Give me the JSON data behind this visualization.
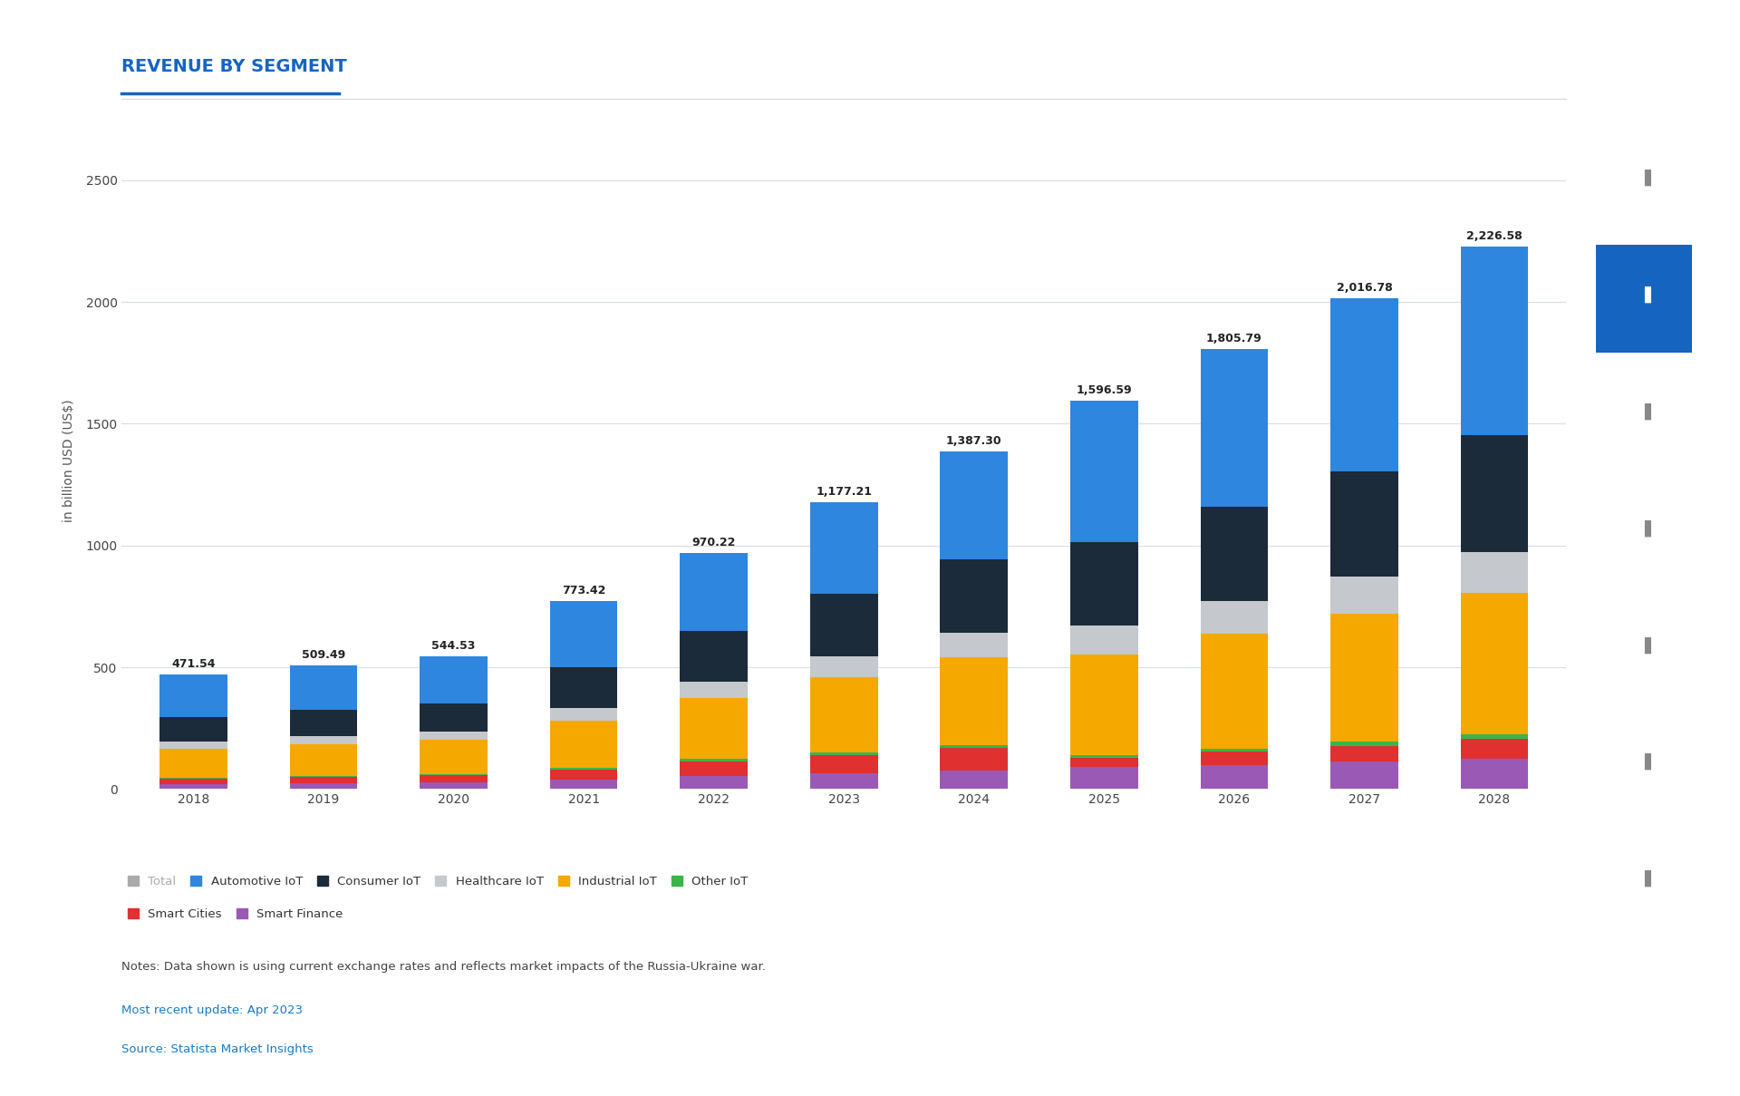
{
  "title": "REVENUE BY SEGMENT",
  "ylabel": "in billion USD (US$)",
  "years": [
    2018,
    2019,
    2020,
    2021,
    2022,
    2023,
    2024,
    2025,
    2026,
    2027,
    2028
  ],
  "totals": [
    471.54,
    509.49,
    544.53,
    773.42,
    970.22,
    1177.21,
    1387.3,
    1596.59,
    1805.79,
    2016.78,
    2226.58
  ],
  "segments": {
    "Smart Finance": {
      "color": "#9b59b6",
      "values": [
        22,
        25,
        28,
        40,
        55,
        65,
        78,
        90,
        100,
        112,
        125
      ]
    },
    "Smart Cities": {
      "color": "#e03030",
      "values": [
        20,
        25,
        28,
        40,
        60,
        75,
        90,
        38,
        55,
        65,
        80
      ]
    },
    "Other IoT": {
      "color": "#3ab54a",
      "values": [
        4,
        5,
        5,
        7,
        8,
        10,
        12,
        10,
        12,
        18,
        20
      ]
    },
    "Industrial IoT": {
      "color": "#f5a800",
      "values": [
        120,
        130,
        140,
        195,
        250,
        310,
        362,
        415,
        470,
        525,
        580
      ]
    },
    "Healthcare IoT": {
      "color": "#c5c8cc",
      "values": [
        30,
        33,
        36,
        52,
        68,
        85,
        100,
        118,
        135,
        152,
        170
      ]
    },
    "Consumer IoT": {
      "color": "#1c2b3a",
      "values": [
        100,
        108,
        115,
        165,
        210,
        258,
        300,
        343,
        388,
        433,
        478
      ]
    },
    "Automotive IoT": {
      "color": "#2e86de",
      "values": [
        175.54,
        183.49,
        192.53,
        274.42,
        319.22,
        374.21,
        445.3,
        582.59,
        645.79,
        711.78,
        773.58
      ]
    }
  },
  "ylim": [
    0,
    2700
  ],
  "yticks": [
    0,
    500,
    1000,
    1500,
    2000,
    2500
  ],
  "background_color": "#ffffff",
  "grid_color": "#d8dde6",
  "title_color": "#1565c0",
  "title_fontsize": 14,
  "axis_label_fontsize": 10,
  "tick_fontsize": 10,
  "total_fontsize": 9,
  "note1": "Notes: Data shown is using current exchange rates and reflects market impacts of the Russia-Ukraine war.",
  "note2": "Most recent update: Apr 2023",
  "note3": "Source: Statista Market Insights",
  "note_color": "#444444",
  "note_color2": "#1a7ac4",
  "underline_color": "#1565c0",
  "legend_items": [
    [
      "Total",
      "#aaaaaa"
    ],
    [
      "Automotive IoT",
      "#2e86de"
    ],
    [
      "Consumer IoT",
      "#1c2b3a"
    ],
    [
      "Healthcare IoT",
      "#c5c8cc"
    ],
    [
      "Industrial IoT",
      "#f5a800"
    ],
    [
      "Other IoT",
      "#3ab54a"
    ],
    [
      "Smart Cities",
      "#e03030"
    ],
    [
      "Smart Finance",
      "#9b59b6"
    ]
  ]
}
